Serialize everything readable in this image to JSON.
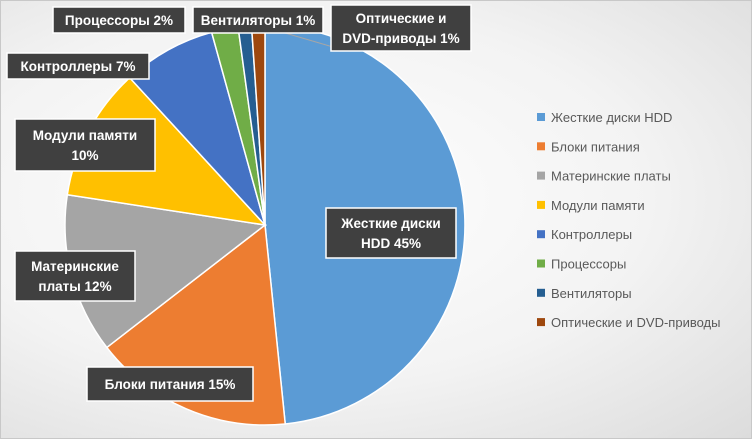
{
  "chart_data": {
    "type": "pie",
    "title": "",
    "legend_position": "right",
    "slices": [
      {
        "name": "Жесткие диски HDD",
        "value": 45,
        "label_lines": [
          "Жесткие диски",
          "HDD 45%"
        ],
        "color": "#5b9bd5"
      },
      {
        "name": "Блоки питания",
        "value": 15,
        "label_lines": [
          "Блоки питания 15%"
        ],
        "color": "#ed7d31"
      },
      {
        "name": "Материнские платы",
        "value": 12,
        "label_lines": [
          "Материнские",
          "платы 12%"
        ],
        "color": "#a5a5a5"
      },
      {
        "name": "Модули памяти",
        "value": 10,
        "label_lines": [
          "Модули памяти",
          "10%"
        ],
        "color": "#ffc000"
      },
      {
        "name": "Контроллеры",
        "value": 7,
        "label_lines": [
          "Контроллеры 7%"
        ],
        "color": "#4472c4"
      },
      {
        "name": "Процессоры",
        "value": 2,
        "label_lines": [
          "Процессоры 2%"
        ],
        "color": "#70ad47"
      },
      {
        "name": "Вентиляторы",
        "value": 1,
        "label_lines": [
          "Вентиляторы 1%"
        ],
        "color": "#255e91"
      },
      {
        "name": "Оптические и DVD-приводы",
        "value": 1,
        "label_lines": [
          "Оптические и",
          "DVD-приводы 1%"
        ],
        "color": "#9e480e"
      }
    ]
  }
}
